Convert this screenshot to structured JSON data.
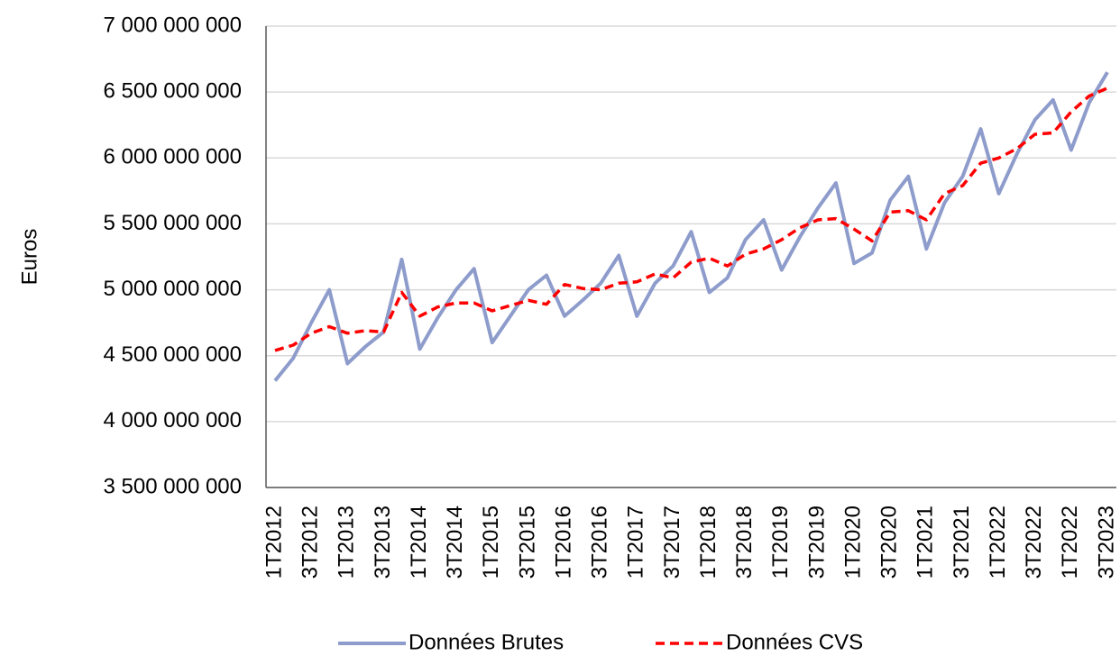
{
  "chart_data": {
    "type": "line",
    "y_label": "Euros",
    "categories": [
      "1T2012",
      null,
      "3T2012",
      null,
      "1T2013",
      null,
      "3T2013",
      null,
      "1T2014",
      null,
      "3T2014",
      null,
      "1T2015",
      null,
      "3T2015",
      null,
      "1T2016",
      null,
      "3T2016",
      null,
      "1T2017",
      null,
      "3T2017",
      null,
      "1T2018",
      null,
      "3T2018",
      null,
      "1T2019",
      null,
      "3T2019",
      null,
      "1T2020",
      null,
      "3T2020",
      null,
      "1T2021",
      null,
      "3T2021",
      null,
      "1T2022",
      null,
      "3T2022",
      null,
      "1T2022",
      null,
      "3T2023"
    ],
    "series": [
      {
        "name": "Données Brutes",
        "color": "#8e9ccc",
        "dash": false,
        "values": [
          4310000000,
          4480000000,
          4750000000,
          5000000000,
          4440000000,
          4570000000,
          4680000000,
          5230000000,
          4550000000,
          4790000000,
          5000000000,
          5160000000,
          4600000000,
          4800000000,
          5000000000,
          5110000000,
          4800000000,
          4920000000,
          5050000000,
          5260000000,
          4800000000,
          5050000000,
          5180000000,
          5440000000,
          4980000000,
          5090000000,
          5380000000,
          5530000000,
          5150000000,
          5400000000,
          5620000000,
          5810000000,
          5200000000,
          5280000000,
          5680000000,
          5860000000,
          5310000000,
          5660000000,
          5860000000,
          6220000000,
          5730000000,
          6030000000,
          6290000000,
          6440000000,
          6060000000,
          6420000000,
          6650000000
        ]
      },
      {
        "name": "Données CVS",
        "color": "#ff0000",
        "dash": true,
        "values": [
          4540000000,
          4580000000,
          4670000000,
          4720000000,
          4670000000,
          4690000000,
          4680000000,
          4980000000,
          4800000000,
          4870000000,
          4900000000,
          4900000000,
          4840000000,
          4880000000,
          4920000000,
          4890000000,
          5040000000,
          5010000000,
          5000000000,
          5050000000,
          5060000000,
          5120000000,
          5090000000,
          5210000000,
          5240000000,
          5180000000,
          5270000000,
          5310000000,
          5380000000,
          5470000000,
          5530000000,
          5540000000,
          5460000000,
          5370000000,
          5590000000,
          5600000000,
          5530000000,
          5730000000,
          5790000000,
          5960000000,
          6000000000,
          6070000000,
          6180000000,
          6190000000,
          6350000000,
          6470000000,
          6530000000
        ]
      }
    ],
    "ylim": [
      3500000000,
      7000000000
    ],
    "yticks": [
      {
        "value": 3500000000,
        "label": "3 500 000 000"
      },
      {
        "value": 4000000000,
        "label": "4 000 000 000"
      },
      {
        "value": 4500000000,
        "label": "4 500 000 000"
      },
      {
        "value": 5000000000,
        "label": "5 000 000 000"
      },
      {
        "value": 5500000000,
        "label": "5 500 000 000"
      },
      {
        "value": 6000000000,
        "label": "6 000 000 000"
      },
      {
        "value": 6500000000,
        "label": "6 500 000 000"
      },
      {
        "value": 7000000000,
        "label": "7 000 000 000"
      }
    ],
    "grid": true,
    "legend": "bottom"
  }
}
